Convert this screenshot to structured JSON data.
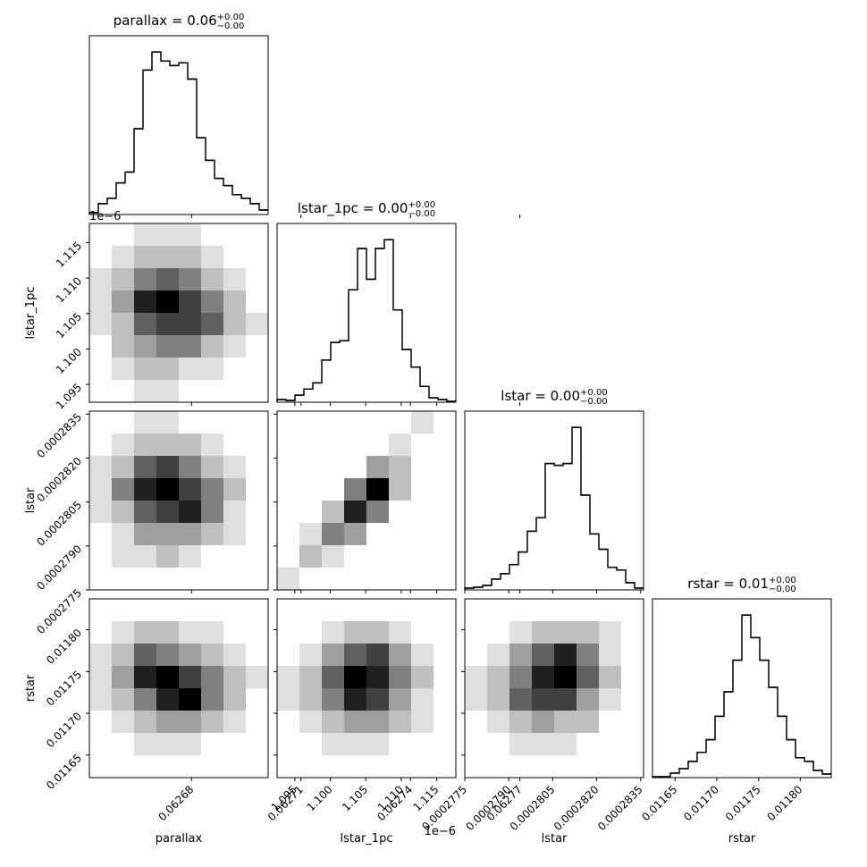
{
  "chart_data": {
    "type": "corner",
    "variables": [
      {
        "name": "parallax",
        "title": {
          "text": "parallax = 0.06",
          "sup": "+0.00",
          "sub": "−0.00"
        },
        "lim": [
          0.062652,
          0.062701
        ],
        "ticks": [
          0.06268,
          0.06271,
          0.06274,
          0.06277
        ],
        "bins": [
          0.062652,
          0.06265445,
          0.0626569,
          0.06265935,
          0.0626618,
          0.06266425,
          0.0626667,
          0.06266915,
          0.0626716,
          0.06267405,
          0.0626765,
          0.06267895,
          0.0626814,
          0.06268385,
          0.0626863,
          0.06268875,
          0.0626912,
          0.06269365,
          0.0626961,
          0.06269855,
          0.062701
        ],
        "counts": [
          2,
          12,
          18,
          35,
          47,
          95,
          160,
          180,
          170,
          165,
          168,
          150,
          85,
          60,
          40,
          32,
          22,
          18,
          12,
          5
        ]
      },
      {
        "name": "lstar_1pc",
        "title": {
          "text": "lstar_1pc = 0.00",
          "sup": "+0.00",
          "sub": "−0.00"
        },
        "offset_label": "1e−6",
        "lim": [
          1.0925,
          1.1177
        ],
        "ticks": [
          1.095,
          {
            "value": 1.1,
            "label": "1.100"
          },
          1.105,
          {
            "value": 1.11,
            "label": "1.110"
          },
          1.115
        ],
        "bins": [
          1.0925,
          1.09376,
          1.09502,
          1.09628,
          1.09754,
          1.0988,
          1.10006,
          1.10132,
          1.10258,
          1.10384,
          1.1051,
          1.10636,
          1.10762,
          1.10888,
          1.11014,
          1.1114,
          1.11266,
          1.11392,
          1.11518,
          1.11644,
          1.1177
        ],
        "counts": [
          3,
          2,
          8,
          15,
          22,
          48,
          68,
          70,
          128,
          175,
          140,
          175,
          185,
          105,
          60,
          40,
          18,
          5,
          3,
          1
        ]
      },
      {
        "name": "lstar",
        "title": {
          "text": "lstar = 0.00",
          "sup": "+0.00",
          "sub": "−0.00"
        },
        "lim": [
          0.0002775,
          0.0002836
        ],
        "ticks": [
          0.0002775,
          {
            "value": 0.000279,
            "label": "0.0002790"
          },
          0.0002805,
          {
            "value": 0.000282,
            "label": "0.0002820"
          },
          0.0002835
        ],
        "bins": [
          0.0002775,
          0.000277805,
          0.00027811,
          0.000278415,
          0.00027872,
          0.000279025,
          0.00027933,
          0.000279635,
          0.00027994,
          0.000280245,
          0.00028055,
          0.000280855,
          0.00028116,
          0.000281465,
          0.00028177,
          0.000282075,
          0.00028238,
          0.000282685,
          0.00028299,
          0.000283295,
          0.0002836
        ],
        "counts": [
          2,
          3,
          5,
          12,
          18,
          28,
          42,
          65,
          80,
          140,
          138,
          140,
          180,
          105,
          62,
          45,
          25,
          22,
          8,
          2
        ]
      },
      {
        "name": "rstar",
        "title": {
          "text": "rstar = 0.01",
          "sup": "+0.00",
          "sub": "−0.00"
        },
        "lim": [
          0.011623,
          0.011837
        ],
        "ticks": [
          0.01165,
          {
            "value": 0.0117,
            "label": "0.01170"
          },
          0.01175,
          {
            "value": 0.0118,
            "label": "0.01180"
          }
        ],
        "bins": [
          0.011623,
          0.0116337,
          0.0116444,
          0.0116551,
          0.0116658,
          0.0116765,
          0.0116872,
          0.0116979,
          0.0117086,
          0.0117193,
          0.01173,
          0.0117407,
          0.0117514,
          0.0117621,
          0.0117728,
          0.0117835,
          0.0117942,
          0.0118049,
          0.0118156,
          0.0118263,
          0.011837
        ],
        "counts": [
          1,
          1,
          5,
          10,
          18,
          28,
          42,
          68,
          95,
          130,
          180,
          155,
          130,
          100,
          68,
          42,
          22,
          18,
          8,
          4
        ]
      }
    ],
    "panels": [
      {
        "density": [
          [
            0,
            0,
            1,
            1,
            1,
            0,
            0,
            0
          ],
          [
            0,
            1,
            2,
            2,
            2,
            1,
            0,
            0
          ],
          [
            1,
            2,
            4,
            5,
            4,
            2,
            1,
            0
          ],
          [
            1,
            3,
            7,
            8,
            6,
            4,
            2,
            0
          ],
          [
            1,
            2,
            5,
            6,
            6,
            5,
            2,
            1
          ],
          [
            0,
            2,
            3,
            4,
            4,
            2,
            1,
            0
          ],
          [
            0,
            1,
            2,
            2,
            1,
            1,
            0,
            0
          ],
          [
            0,
            0,
            1,
            1,
            0,
            0,
            0,
            0
          ]
        ]
      },
      {
        "density": [
          [
            0,
            0,
            1,
            1,
            0,
            0,
            0,
            0
          ],
          [
            0,
            1,
            2,
            2,
            2,
            1,
            0,
            0
          ],
          [
            1,
            2,
            5,
            6,
            4,
            2,
            1,
            0
          ],
          [
            1,
            4,
            7,
            8,
            6,
            4,
            2,
            0
          ],
          [
            1,
            2,
            5,
            6,
            7,
            4,
            1,
            0
          ],
          [
            0,
            1,
            3,
            3,
            3,
            2,
            1,
            0
          ],
          [
            0,
            1,
            1,
            2,
            1,
            0,
            0,
            0
          ],
          [
            0,
            0,
            0,
            0,
            0,
            0,
            0,
            0
          ]
        ]
      },
      {
        "density": [
          [
            0,
            0,
            0,
            0,
            0,
            0,
            1,
            0
          ],
          [
            0,
            0,
            0,
            0,
            0,
            1,
            0,
            0
          ],
          [
            0,
            0,
            0,
            0,
            3,
            2,
            0,
            0
          ],
          [
            0,
            0,
            0,
            4,
            8,
            2,
            0,
            0
          ],
          [
            0,
            0,
            2,
            7,
            4,
            0,
            0,
            0
          ],
          [
            0,
            1,
            4,
            3,
            0,
            0,
            0,
            0
          ],
          [
            0,
            2,
            1,
            0,
            0,
            0,
            0,
            0
          ],
          [
            1,
            0,
            0,
            0,
            0,
            0,
            0,
            0
          ]
        ]
      },
      {
        "density": [
          [
            0,
            0,
            0,
            0,
            0,
            0,
            0,
            0
          ],
          [
            0,
            1,
            2,
            2,
            1,
            1,
            0,
            0
          ],
          [
            1,
            2,
            5,
            4,
            3,
            2,
            1,
            0
          ],
          [
            1,
            3,
            7,
            8,
            6,
            4,
            2,
            1
          ],
          [
            1,
            2,
            4,
            7,
            8,
            4,
            2,
            0
          ],
          [
            0,
            1,
            2,
            3,
            3,
            2,
            1,
            0
          ],
          [
            0,
            0,
            1,
            1,
            1,
            0,
            0,
            0
          ],
          [
            0,
            0,
            0,
            0,
            0,
            0,
            0,
            0
          ]
        ]
      },
      {
        "density": [
          [
            0,
            0,
            0,
            0,
            0,
            0,
            0,
            0
          ],
          [
            0,
            0,
            1,
            2,
            2,
            1,
            0,
            0
          ],
          [
            0,
            1,
            3,
            5,
            6,
            3,
            1,
            0
          ],
          [
            1,
            2,
            5,
            8,
            7,
            4,
            2,
            0
          ],
          [
            1,
            2,
            4,
            7,
            6,
            3,
            1,
            0
          ],
          [
            0,
            1,
            2,
            3,
            3,
            2,
            1,
            0
          ],
          [
            0,
            0,
            1,
            1,
            1,
            0,
            0,
            0
          ],
          [
            0,
            0,
            0,
            0,
            0,
            0,
            0,
            0
          ]
        ]
      },
      {
        "density": [
          [
            0,
            0,
            0,
            0,
            0,
            0,
            0,
            0
          ],
          [
            0,
            0,
            1,
            2,
            2,
            2,
            1,
            0
          ],
          [
            0,
            1,
            3,
            5,
            7,
            4,
            1,
            0
          ],
          [
            1,
            2,
            4,
            7,
            8,
            5,
            2,
            0
          ],
          [
            1,
            2,
            5,
            6,
            6,
            3,
            1,
            0
          ],
          [
            0,
            1,
            2,
            3,
            2,
            2,
            0,
            0
          ],
          [
            0,
            0,
            1,
            1,
            1,
            0,
            0,
            0
          ],
          [
            0,
            0,
            0,
            0,
            0,
            0,
            0,
            0
          ]
        ]
      }
    ]
  }
}
